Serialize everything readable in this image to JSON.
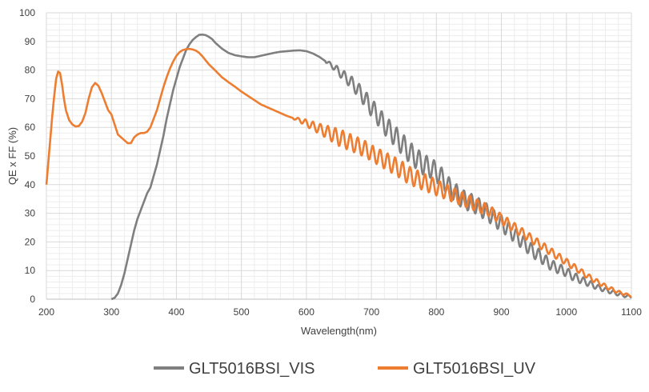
{
  "chart_data": {
    "type": "line",
    "title": "",
    "xlabel": "Wavelength(nm)",
    "ylabel": "QE x FF (%)",
    "xlim": [
      200,
      1100
    ],
    "ylim": [
      0,
      100
    ],
    "x_ticks": [
      200,
      300,
      400,
      500,
      600,
      700,
      800,
      900,
      1000,
      1100
    ],
    "y_ticks": [
      0,
      10,
      20,
      30,
      40,
      50,
      60,
      70,
      80,
      90,
      100
    ],
    "grid": "on",
    "legend_placement": "bottom-center",
    "series": [
      {
        "name": "GLT5016BSI_VIS",
        "color": "#7f7f7f",
        "points": [
          [
            300,
            0
          ],
          [
            305,
            0.5
          ],
          [
            310,
            2
          ],
          [
            315,
            5
          ],
          [
            320,
            9
          ],
          [
            325,
            14
          ],
          [
            330,
            19
          ],
          [
            335,
            24
          ],
          [
            340,
            28
          ],
          [
            345,
            31
          ],
          [
            350,
            34
          ],
          [
            355,
            37
          ],
          [
            360,
            39
          ],
          [
            365,
            43
          ],
          [
            370,
            47
          ],
          [
            375,
            52
          ],
          [
            380,
            57
          ],
          [
            385,
            63
          ],
          [
            390,
            68
          ],
          [
            395,
            73
          ],
          [
            400,
            77
          ],
          [
            405,
            81
          ],
          [
            410,
            84
          ],
          [
            415,
            87
          ],
          [
            420,
            89
          ],
          [
            425,
            90.5
          ],
          [
            430,
            91.5
          ],
          [
            435,
            92.3
          ],
          [
            440,
            92.4
          ],
          [
            445,
            92.2
          ],
          [
            450,
            91.6
          ],
          [
            455,
            90.8
          ],
          [
            460,
            89.5
          ],
          [
            470,
            87.5
          ],
          [
            480,
            86
          ],
          [
            490,
            85.2
          ],
          [
            500,
            84.8
          ],
          [
            510,
            84.5
          ],
          [
            520,
            84.5
          ],
          [
            530,
            85
          ],
          [
            540,
            85.5
          ],
          [
            550,
            86
          ],
          [
            560,
            86.4
          ],
          [
            570,
            86.6
          ],
          [
            580,
            86.8
          ],
          [
            590,
            86.9
          ],
          [
            600,
            86.6
          ],
          [
            610,
            85.8
          ],
          [
            620,
            84.6
          ],
          [
            630,
            83
          ],
          [
            640,
            81.5
          ],
          [
            650,
            79.5
          ],
          [
            660,
            77.5
          ],
          [
            670,
            75.5
          ],
          [
            680,
            73
          ],
          [
            690,
            70
          ],
          [
            700,
            67
          ],
          [
            710,
            64
          ],
          [
            720,
            61
          ],
          [
            730,
            58.5
          ],
          [
            740,
            56
          ],
          [
            750,
            53.5
          ],
          [
            760,
            51
          ],
          [
            770,
            49
          ],
          [
            780,
            47
          ],
          [
            790,
            46
          ],
          [
            800,
            44.5
          ],
          [
            810,
            42
          ],
          [
            820,
            39
          ],
          [
            830,
            37
          ],
          [
            840,
            35
          ],
          [
            850,
            34
          ],
          [
            860,
            33
          ],
          [
            870,
            31.5
          ],
          [
            880,
            30
          ],
          [
            890,
            28
          ],
          [
            900,
            26.5
          ],
          [
            910,
            24.5
          ],
          [
            920,
            22.5
          ],
          [
            930,
            20.5
          ],
          [
            940,
            18.5
          ],
          [
            950,
            16.5
          ],
          [
            960,
            15
          ],
          [
            970,
            13
          ],
          [
            980,
            11.5
          ],
          [
            990,
            10.5
          ],
          [
            1000,
            9.5
          ],
          [
            1010,
            8
          ],
          [
            1020,
            7
          ],
          [
            1030,
            6
          ],
          [
            1040,
            5
          ],
          [
            1050,
            4
          ],
          [
            1060,
            3.3
          ],
          [
            1070,
            2.5
          ],
          [
            1080,
            1.8
          ],
          [
            1090,
            1.2
          ],
          [
            1100,
            0.8
          ]
        ],
        "oscillation": [
          [
            630,
            0.4
          ],
          [
            650,
            1.5
          ],
          [
            680,
            2.5
          ],
          [
            700,
            3.2
          ],
          [
            750,
            3.8
          ],
          [
            800,
            3.5
          ],
          [
            850,
            3.2
          ],
          [
            900,
            2.8
          ],
          [
            950,
            2.3
          ],
          [
            1000,
            1.6
          ],
          [
            1050,
            0.9
          ],
          [
            1100,
            0.4
          ]
        ]
      },
      {
        "name": "GLT5016BSI_UV",
        "color": "#ed7d31",
        "points": [
          [
            200,
            40
          ],
          [
            203,
            48
          ],
          [
            206,
            56
          ],
          [
            209,
            64
          ],
          [
            212,
            71
          ],
          [
            215,
            77
          ],
          [
            218,
            79.5
          ],
          [
            221,
            79
          ],
          [
            224,
            75
          ],
          [
            227,
            70
          ],
          [
            230,
            66
          ],
          [
            235,
            62.5
          ],
          [
            240,
            61
          ],
          [
            245,
            60.3
          ],
          [
            250,
            60.5
          ],
          [
            255,
            62
          ],
          [
            260,
            65
          ],
          [
            265,
            70
          ],
          [
            270,
            74
          ],
          [
            275,
            75.5
          ],
          [
            280,
            74.5
          ],
          [
            285,
            72
          ],
          [
            290,
            69
          ],
          [
            295,
            66
          ],
          [
            300,
            64.5
          ],
          [
            305,
            61
          ],
          [
            310,
            57.5
          ],
          [
            315,
            56.5
          ],
          [
            320,
            55.5
          ],
          [
            325,
            54.5
          ],
          [
            330,
            54.5
          ],
          [
            335,
            56.5
          ],
          [
            340,
            57.5
          ],
          [
            345,
            58
          ],
          [
            350,
            58
          ],
          [
            355,
            58.5
          ],
          [
            360,
            60
          ],
          [
            365,
            63
          ],
          [
            370,
            66
          ],
          [
            375,
            70
          ],
          [
            380,
            74
          ],
          [
            385,
            77.5
          ],
          [
            390,
            80.5
          ],
          [
            395,
            83
          ],
          [
            400,
            85
          ],
          [
            405,
            86.3
          ],
          [
            410,
            87
          ],
          [
            415,
            87.3
          ],
          [
            420,
            87.4
          ],
          [
            425,
            87.2
          ],
          [
            430,
            86.8
          ],
          [
            435,
            86
          ],
          [
            440,
            84.8
          ],
          [
            450,
            82
          ],
          [
            460,
            79.8
          ],
          [
            470,
            77.5
          ],
          [
            480,
            75.8
          ],
          [
            490,
            74.2
          ],
          [
            500,
            72.5
          ],
          [
            510,
            71
          ],
          [
            520,
            69.5
          ],
          [
            530,
            68
          ],
          [
            540,
            67
          ],
          [
            550,
            66
          ],
          [
            560,
            65
          ],
          [
            570,
            64
          ],
          [
            580,
            63.2
          ],
          [
            590,
            62.5
          ],
          [
            600,
            61.5
          ],
          [
            610,
            60.5
          ],
          [
            620,
            59.5
          ],
          [
            630,
            58.5
          ],
          [
            640,
            57.5
          ],
          [
            650,
            56.5
          ],
          [
            660,
            55.5
          ],
          [
            670,
            54.5
          ],
          [
            680,
            53.5
          ],
          [
            690,
            52.5
          ],
          [
            700,
            51
          ],
          [
            710,
            49.8
          ],
          [
            720,
            48.5
          ],
          [
            730,
            47.3
          ],
          [
            740,
            46
          ],
          [
            750,
            44.5
          ],
          [
            760,
            43
          ],
          [
            770,
            42
          ],
          [
            780,
            41
          ],
          [
            790,
            40
          ],
          [
            800,
            39
          ],
          [
            810,
            38
          ],
          [
            820,
            37
          ],
          [
            830,
            36
          ],
          [
            840,
            35
          ],
          [
            850,
            34
          ],
          [
            860,
            33
          ],
          [
            870,
            32
          ],
          [
            880,
            31
          ],
          [
            890,
            29.5
          ],
          [
            900,
            28
          ],
          [
            910,
            26.5
          ],
          [
            920,
            25
          ],
          [
            930,
            23.5
          ],
          [
            940,
            22
          ],
          [
            950,
            20.5
          ],
          [
            960,
            19
          ],
          [
            970,
            17.5
          ],
          [
            980,
            16
          ],
          [
            990,
            14.5
          ],
          [
            1000,
            13
          ],
          [
            1010,
            11.5
          ],
          [
            1020,
            10
          ],
          [
            1030,
            8.5
          ],
          [
            1040,
            7
          ],
          [
            1050,
            5.8
          ],
          [
            1060,
            4.5
          ],
          [
            1070,
            3.5
          ],
          [
            1080,
            2.5
          ],
          [
            1090,
            1.8
          ],
          [
            1100,
            1.2
          ]
        ],
        "oscillation": [
          [
            580,
            0.3
          ],
          [
            600,
            1.2
          ],
          [
            620,
            1.8
          ],
          [
            650,
            3
          ],
          [
            700,
            2.8
          ],
          [
            750,
            3.2
          ],
          [
            800,
            2.8
          ],
          [
            850,
            2.3
          ],
          [
            900,
            1.8
          ],
          [
            950,
            1.5
          ],
          [
            1000,
            1.2
          ],
          [
            1050,
            0.8
          ],
          [
            1100,
            0.3
          ]
        ]
      }
    ]
  }
}
